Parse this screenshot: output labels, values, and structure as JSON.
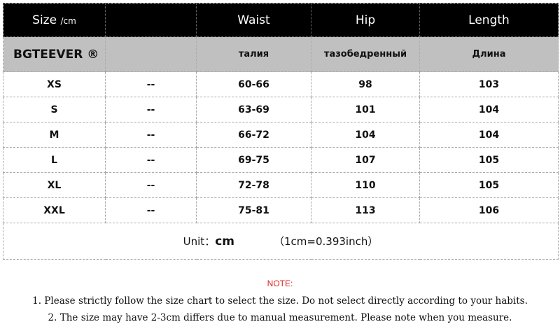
{
  "header": {
    "size": "Size",
    "size_unit": "/cm",
    "blank": "",
    "waist": "Waist",
    "hip": "Hip",
    "length": "Length"
  },
  "subheader": {
    "brand": "BGTEEVER ®",
    "waist": "талия",
    "hip": "тазобедренный",
    "length": "Длина"
  },
  "rows": [
    {
      "size": "XS",
      "col2": "--",
      "waist": "60-66",
      "hip": "98",
      "length": "103"
    },
    {
      "size": "S",
      "col2": "--",
      "waist": "63-69",
      "hip": "101",
      "length": "104"
    },
    {
      "size": "M",
      "col2": "--",
      "waist": "66-72",
      "hip": "104",
      "length": "104"
    },
    {
      "size": "L",
      "col2": "--",
      "waist": "69-75",
      "hip": "107",
      "length": "105"
    },
    {
      "size": "XL",
      "col2": "--",
      "waist": "72-78",
      "hip": "110",
      "length": "105"
    },
    {
      "size": "XXL",
      "col2": "--",
      "waist": "75-81",
      "hip": "113",
      "length": "106"
    }
  ],
  "unit": {
    "label": "Unit：",
    "value": "cm",
    "conversion": "（1cm=0.393inch）"
  },
  "notes": {
    "title": "NOTE:",
    "items": [
      "1. Please strictly follow the size chart to select the size. Do not select directly according to your habits.",
      "2. The size may have 2-3cm differs due to manual measurement. Please note when you measure."
    ]
  },
  "colors": {
    "header_bg": "#000000",
    "subheader_bg": "#c0c0c0",
    "note_title": "#dd2222"
  }
}
